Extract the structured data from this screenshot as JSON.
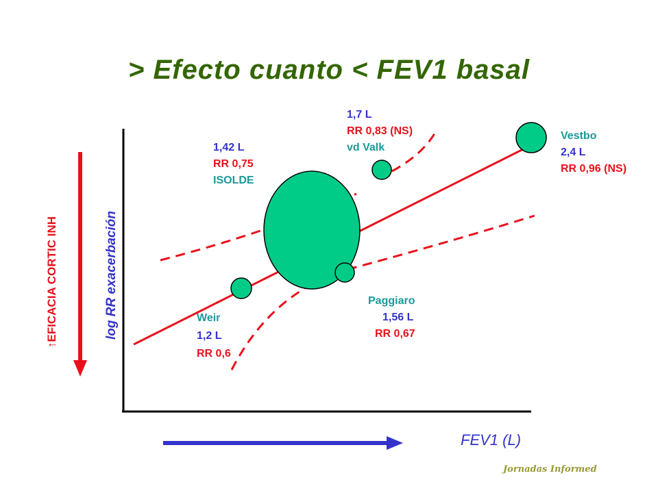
{
  "title": "> Efecto cuanto < FEV1 basal",
  "y_axis_label": "log RR exacerbación",
  "side_arrow_label": "↑EFICACIA CORTIC INH",
  "x_axis_label": "FEV1 (L)",
  "footer": "Jornadas Informed",
  "studies": {
    "isolde": {
      "line1": "1,42 L",
      "line2": "RR 0,75",
      "line3": "ISOLDE"
    },
    "vdvalk": {
      "line1": "1,7 L",
      "line2": "RR 0,83 (NS)",
      "line3": "vd Valk"
    },
    "vestbo": {
      "line1": "Vestbo",
      "line2": "2,4 L",
      "line3": "RR 0,96 (NS)"
    },
    "weir": {
      "line1": "Weir",
      "line2": "1,2 L",
      "line3": "RR 0,6"
    },
    "paggiaro": {
      "line1": "Paggiaro",
      "line2": "1,56 L",
      "line3": "RR 0,67"
    }
  },
  "colors": {
    "title": "#336600",
    "marker": "#00cc88",
    "regression": "#e8111b",
    "axis": "#000000",
    "blue_arrow": "#3333cc",
    "red_arrow": "#e8111b"
  }
}
